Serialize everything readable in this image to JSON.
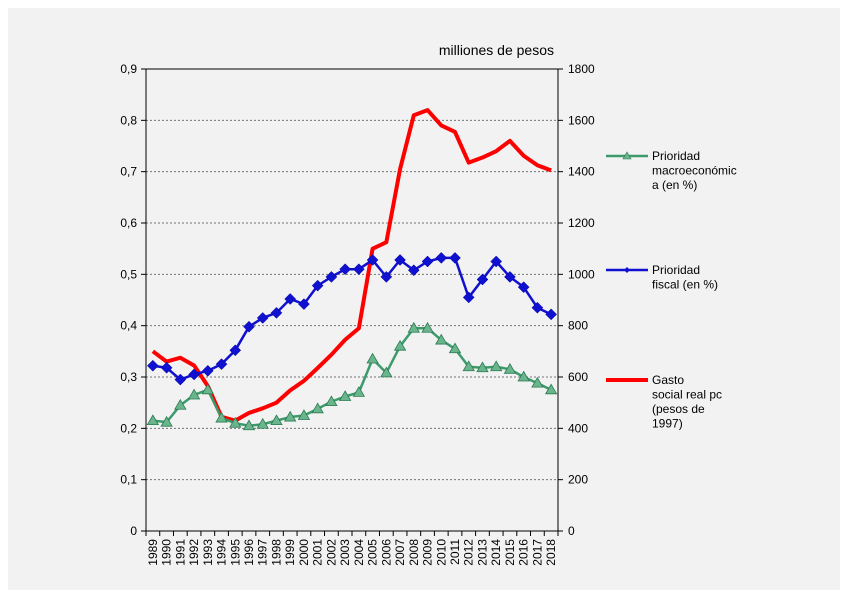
{
  "chart_data": {
    "type": "line",
    "unit_label": "milliones de pesos",
    "categories": [
      "1989",
      "1990",
      "1991",
      "1992",
      "1993",
      "1994",
      "1995",
      "1996",
      "1997",
      "1998",
      "1999",
      "2000",
      "2001",
      "2002",
      "2003",
      "2004",
      "2005",
      "2006",
      "2007",
      "2008",
      "2009",
      "2010",
      "2011",
      "2012",
      "2013",
      "2014",
      "2015",
      "2016",
      "2017",
      "2018"
    ],
    "y_left": {
      "min": 0,
      "max": 0.9,
      "ticks": [
        "0",
        "0,1",
        "0,2",
        "0,3",
        "0,4",
        "0,5",
        "0,6",
        "0,7",
        "0,8",
        "0,9"
      ]
    },
    "y_right": {
      "min": 0,
      "max": 1800,
      "ticks": [
        "0",
        "200",
        "400",
        "600",
        "800",
        "1000",
        "1200",
        "1400",
        "1600",
        "1800"
      ]
    },
    "grid": "horizontal dashed",
    "legend_position": "right",
    "series": [
      {
        "name": " Prioridad macroeconómica a (en %)",
        "legend_lines": [
          " Prioridad",
          "macroeconómic",
          "a (en %)"
        ],
        "axis": "left",
        "color": "#3c9a6b",
        "marker": "triangle",
        "values": [
          0.215,
          0.212,
          0.245,
          0.265,
          0.275,
          0.22,
          0.21,
          0.205,
          0.208,
          0.215,
          0.222,
          0.225,
          0.238,
          0.252,
          0.262,
          0.27,
          0.335,
          0.308,
          0.36,
          0.395,
          0.395,
          0.372,
          0.355,
          0.32,
          0.318,
          0.32,
          0.315,
          0.3,
          0.288,
          0.275
        ]
      },
      {
        "name": "Prioridad fiscal (en %)",
        "legend_lines": [
          "Prioridad",
          "fiscal (en %)"
        ],
        "axis": "left",
        "color": "#1010d0",
        "marker": "diamond",
        "values": [
          0.322,
          0.318,
          0.295,
          0.305,
          0.312,
          0.325,
          0.352,
          0.398,
          0.415,
          0.425,
          0.452,
          0.442,
          0.478,
          0.495,
          0.51,
          0.51,
          0.528,
          0.495,
          0.528,
          0.508,
          0.525,
          0.532,
          0.532,
          0.455,
          0.49,
          0.525,
          0.495,
          0.475,
          0.435,
          0.422
        ]
      },
      {
        "name": "Gasto social real pc (pesos de 1997)",
        "legend_lines": [
          "Gasto",
          "social real pc",
          "(pesos de",
          "1997)"
        ],
        "axis": "right",
        "color": "#ff0000",
        "marker": "none",
        "values": [
          700,
          660,
          675,
          645,
          565,
          445,
          430,
          460,
          478,
          500,
          548,
          585,
          635,
          687,
          745,
          790,
          1100,
          1125,
          1410,
          1620,
          1640,
          1580,
          1555,
          1435,
          1455,
          1480,
          1520,
          1462,
          1425,
          1405
        ]
      }
    ]
  }
}
